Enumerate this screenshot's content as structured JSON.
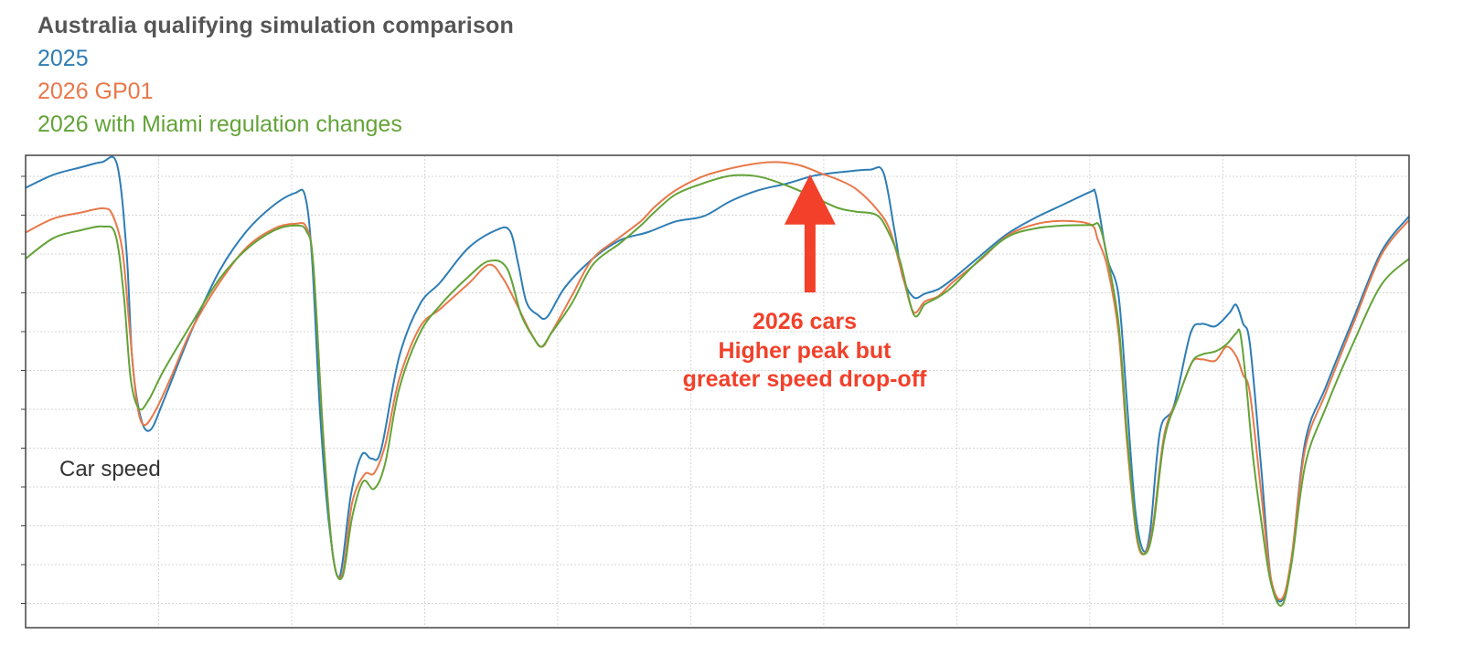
{
  "chart_data": {
    "type": "line",
    "title": "Australia qualifying simulation comparison",
    "xlabel": "",
    "ylabel": "Car speed",
    "xlim": [
      0,
      100
    ],
    "ylim": [
      0,
      100
    ],
    "grid": true,
    "legend_placement": "top-left",
    "series": [
      {
        "name": "2025",
        "color": "#2e7db5",
        "points": [
          [
            0,
            89.1
          ],
          [
            2,
            91.9
          ],
          [
            4,
            93.5
          ],
          [
            5.5,
            94.6
          ],
          [
            6.6,
            94.2
          ],
          [
            7.3,
            75.4
          ],
          [
            7.7,
            52.6
          ],
          [
            8.3,
            40.0
          ],
          [
            9.0,
            37.1
          ],
          [
            10,
            43.6
          ],
          [
            12,
            58.5
          ],
          [
            14,
            71.2
          ],
          [
            16,
            79.9
          ],
          [
            18,
            85.5
          ],
          [
            19.5,
            88.0
          ],
          [
            20.2,
            87.4
          ],
          [
            20.7,
            74.0
          ],
          [
            21.3,
            40.0
          ],
          [
            22,
            15.2
          ],
          [
            22.7,
            5.7
          ],
          [
            23.5,
            23.0
          ],
          [
            24.3,
            31.8
          ],
          [
            25,
            31.0
          ],
          [
            25.7,
            32.9
          ],
          [
            27,
            52.8
          ],
          [
            28.5,
            64.1
          ],
          [
            30,
            68.9
          ],
          [
            32,
            76.2
          ],
          [
            34,
            80.0
          ],
          [
            35,
            79.9
          ],
          [
            35.6,
            72.9
          ],
          [
            36.2,
            64.6
          ],
          [
            37,
            61.9
          ],
          [
            37.7,
            61.4
          ],
          [
            39,
            67.8
          ],
          [
            41,
            73.9
          ],
          [
            43,
            77.9
          ],
          [
            45,
            79.6
          ],
          [
            47,
            81.9
          ],
          [
            49,
            83.0
          ],
          [
            51,
            86.3
          ],
          [
            53,
            88.6
          ],
          [
            55,
            90.0
          ],
          [
            57,
            91.7
          ],
          [
            59,
            92.5
          ],
          [
            61,
            93.0
          ],
          [
            62,
            92.4
          ],
          [
            62.8,
            80.0
          ],
          [
            63.4,
            70.0
          ],
          [
            64.2,
            65.6
          ],
          [
            65,
            66.4
          ],
          [
            66,
            67.4
          ],
          [
            67,
            69.5
          ],
          [
            69,
            74.5
          ],
          [
            71,
            79.3
          ],
          [
            73,
            82.7
          ],
          [
            75,
            85.5
          ],
          [
            77,
            88.3
          ],
          [
            77.3,
            88.3
          ],
          [
            77.6,
            84.0
          ],
          [
            78.2,
            73.8
          ],
          [
            79,
            66.0
          ],
          [
            79.6,
            43.5
          ],
          [
            80.2,
            20.2
          ],
          [
            80.8,
            11.2
          ],
          [
            81.3,
            15.8
          ],
          [
            82,
            36.9
          ],
          [
            83,
            42.3
          ],
          [
            84.2,
            57.8
          ],
          [
            85,
            59.9
          ],
          [
            86,
            59.4
          ],
          [
            87,
            62.2
          ],
          [
            87.5,
            64.0
          ],
          [
            88,
            60.0
          ],
          [
            88.5,
            55.5
          ],
          [
            89.3,
            29.5
          ],
          [
            90,
            5.5
          ],
          [
            90.8,
            0.5
          ],
          [
            91.5,
            9.3
          ],
          [
            92.5,
            34.7
          ],
          [
            94,
            46.5
          ],
          [
            96,
            61.2
          ],
          [
            98,
            75.4
          ],
          [
            100,
            83.0
          ]
        ]
      },
      {
        "name": "2026 GP01",
        "color": "#e8784a",
        "points": [
          [
            0,
            79.5
          ],
          [
            2,
            82.5
          ],
          [
            4,
            83.8
          ],
          [
            5.6,
            84.7
          ],
          [
            6.3,
            83.2
          ],
          [
            7.0,
            75.6
          ],
          [
            7.5,
            59.5
          ],
          [
            8,
            44.0
          ],
          [
            8.5,
            38.3
          ],
          [
            9.3,
            40.8
          ],
          [
            10.5,
            48.4
          ],
          [
            12,
            58.7
          ],
          [
            14,
            68.7
          ],
          [
            16,
            76.4
          ],
          [
            18,
            80.4
          ],
          [
            19.5,
            81.4
          ],
          [
            20.3,
            80.6
          ],
          [
            20.8,
            72.3
          ],
          [
            21.5,
            36.7
          ],
          [
            22.2,
            10.5
          ],
          [
            22.9,
            6.2
          ],
          [
            23.6,
            21.5
          ],
          [
            24.5,
            27.6
          ],
          [
            25.2,
            27.9
          ],
          [
            26,
            34.0
          ],
          [
            27,
            48.0
          ],
          [
            28.5,
            59.2
          ],
          [
            30,
            63.2
          ],
          [
            32,
            68.5
          ],
          [
            33.5,
            72.6
          ],
          [
            34.5,
            69.7
          ],
          [
            35.5,
            64.1
          ],
          [
            36.5,
            58.1
          ],
          [
            37.3,
            55.0
          ],
          [
            38,
            58.0
          ],
          [
            39.5,
            66.0
          ],
          [
            41,
            73.9
          ],
          [
            43,
            78.6
          ],
          [
            44.5,
            82.0
          ],
          [
            45.5,
            85.1
          ],
          [
            47,
            88.6
          ],
          [
            49,
            91.6
          ],
          [
            51,
            93.3
          ],
          [
            53,
            94.4
          ],
          [
            54.5,
            94.6
          ],
          [
            56,
            93.9
          ],
          [
            57.5,
            92.2
          ],
          [
            58.7,
            90.9
          ],
          [
            60,
            88.9
          ],
          [
            61.5,
            84.6
          ],
          [
            62.5,
            79.8
          ],
          [
            63.5,
            69.0
          ],
          [
            64.2,
            62.4
          ],
          [
            65,
            64.7
          ],
          [
            66,
            65.9
          ],
          [
            67,
            68.8
          ],
          [
            69,
            73.6
          ],
          [
            71,
            78.9
          ],
          [
            73,
            81.3
          ],
          [
            75,
            82.0
          ],
          [
            77,
            81.2
          ],
          [
            77.5,
            78.0
          ],
          [
            78.2,
            72.0
          ],
          [
            79,
            58.0
          ],
          [
            79.6,
            35.0
          ],
          [
            80.3,
            14.3
          ],
          [
            80.9,
            10.6
          ],
          [
            81.5,
            17.0
          ],
          [
            82.3,
            36.0
          ],
          [
            83.3,
            44.0
          ],
          [
            84.3,
            51.6
          ],
          [
            85,
            52.3
          ],
          [
            86,
            52.0
          ],
          [
            86.8,
            55.0
          ],
          [
            87.5,
            53.0
          ],
          [
            88,
            49.0
          ],
          [
            88.5,
            45.0
          ],
          [
            89.3,
            24.0
          ],
          [
            90,
            5.5
          ],
          [
            90.8,
            0.9
          ],
          [
            91.5,
            9.7
          ],
          [
            92.5,
            33.2
          ],
          [
            94,
            45.2
          ],
          [
            96,
            60.2
          ],
          [
            98,
            74.7
          ],
          [
            100,
            82.2
          ]
        ]
      },
      {
        "name": "2026 with Miami regulation changes",
        "color": "#63a338",
        "points": [
          [
            0,
            73.9
          ],
          [
            2,
            78.3
          ],
          [
            4,
            80.0
          ],
          [
            5.6,
            80.8
          ],
          [
            6.5,
            79.0
          ],
          [
            7.1,
            66.0
          ],
          [
            7.6,
            48.0
          ],
          [
            8.2,
            41.7
          ],
          [
            8.9,
            43.6
          ],
          [
            10,
            50.0
          ],
          [
            12,
            60.0
          ],
          [
            14,
            69.5
          ],
          [
            16,
            76.0
          ],
          [
            18,
            80.0
          ],
          [
            19.5,
            81.0
          ],
          [
            20.3,
            79.8
          ],
          [
            20.8,
            72.5
          ],
          [
            21.5,
            36.0
          ],
          [
            22.2,
            10.5
          ],
          [
            22.9,
            5.6
          ],
          [
            23.6,
            18.4
          ],
          [
            24.4,
            26.1
          ],
          [
            25.2,
            24.5
          ],
          [
            26,
            30.1
          ],
          [
            27,
            45.9
          ],
          [
            28.5,
            57.9
          ],
          [
            30,
            64.0
          ],
          [
            32,
            70.0
          ],
          [
            33.5,
            73.4
          ],
          [
            34.8,
            71.8
          ],
          [
            35.8,
            62.0
          ],
          [
            36.7,
            57.0
          ],
          [
            37.3,
            55.0
          ],
          [
            38,
            57.9
          ],
          [
            39.5,
            64.4
          ],
          [
            41,
            72.6
          ],
          [
            43,
            77.3
          ],
          [
            44.5,
            81.1
          ],
          [
            45.5,
            84.0
          ],
          [
            47,
            87.7
          ],
          [
            49,
            90.1
          ],
          [
            51,
            91.7
          ],
          [
            53,
            91.5
          ],
          [
            55,
            89.6
          ],
          [
            57,
            87.1
          ],
          [
            58.7,
            84.8
          ],
          [
            60,
            84.0
          ],
          [
            61.5,
            83.3
          ],
          [
            62.3,
            80.0
          ],
          [
            63.2,
            73.5
          ],
          [
            64.2,
            61.9
          ],
          [
            65,
            64.1
          ],
          [
            66,
            65.7
          ],
          [
            67,
            67.9
          ],
          [
            69,
            73.8
          ],
          [
            71,
            78.6
          ],
          [
            73,
            80.4
          ],
          [
            75,
            81.0
          ],
          [
            77,
            81.1
          ],
          [
            77.6,
            81.0
          ],
          [
            78.2,
            74.0
          ],
          [
            79,
            60.0
          ],
          [
            79.6,
            37.0
          ],
          [
            80.3,
            15.2
          ],
          [
            80.9,
            10.5
          ],
          [
            81.5,
            16.0
          ],
          [
            82.3,
            35.0
          ],
          [
            83.3,
            44.0
          ],
          [
            84.3,
            51.6
          ],
          [
            85,
            53.3
          ],
          [
            86,
            54.0
          ],
          [
            86.8,
            55.5
          ],
          [
            87.5,
            57.9
          ],
          [
            87.8,
            57.9
          ],
          [
            88.2,
            48.0
          ],
          [
            88.7,
            32.0
          ],
          [
            89.3,
            18.0
          ],
          [
            90,
            4.5
          ],
          [
            90.8,
            -0.5
          ],
          [
            91.5,
            8.4
          ],
          [
            92.5,
            29.7
          ],
          [
            94,
            42.0
          ],
          [
            96,
            56.0
          ],
          [
            98,
            68.3
          ],
          [
            100,
            73.9
          ]
        ]
      }
    ],
    "annotation": {
      "lines": [
        "2026 cars",
        "Higher peak but",
        "greater speed drop-off"
      ],
      "color": "#f2402a",
      "points_to": [
        56.7,
        92.0
      ]
    }
  }
}
